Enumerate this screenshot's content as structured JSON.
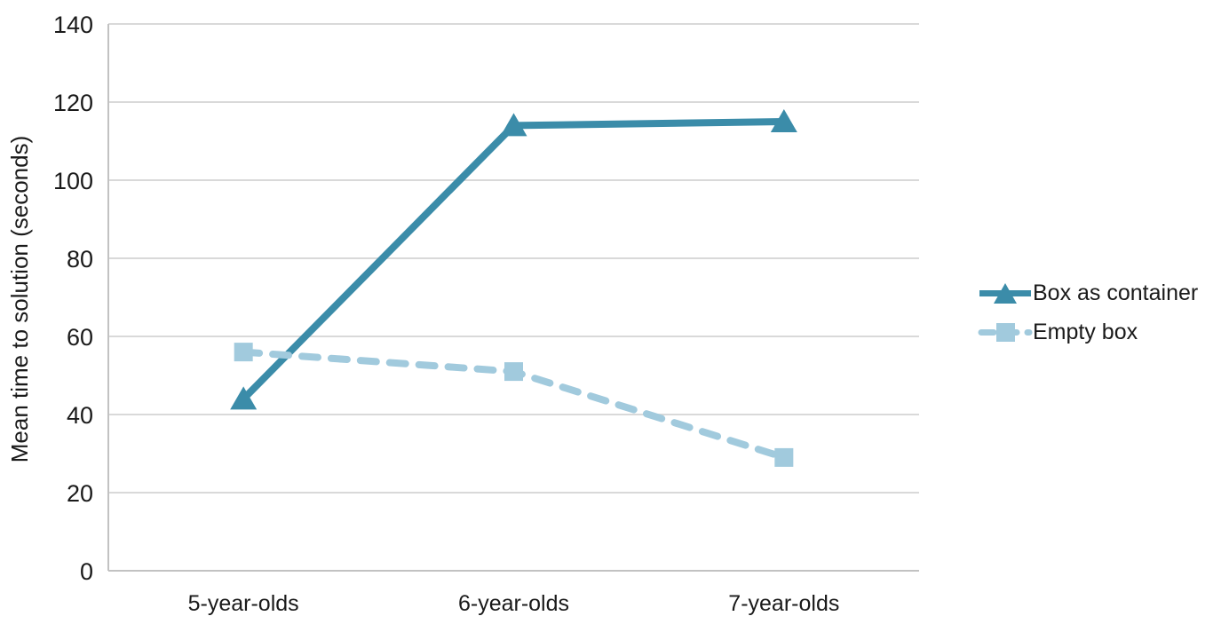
{
  "chart_data": {
    "type": "line",
    "title": "",
    "categories": [
      "5-year-olds",
      "6-year-olds",
      "7-year-olds"
    ],
    "series": [
      {
        "name": "Box as container",
        "values": [
          44,
          114,
          115
        ],
        "color": "#3B8CA9",
        "marker": "triangle",
        "line_style": "solid"
      },
      {
        "name": "Empty box",
        "values": [
          56,
          51,
          29
        ],
        "color": "#A1CADD",
        "marker": "square",
        "line_style": "dashed"
      }
    ],
    "xlabel": "",
    "ylabel": "Mean time to solution (seconds)",
    "ylim": [
      0,
      140
    ],
    "yticks": [
      0,
      20,
      40,
      60,
      80,
      100,
      120,
      140
    ],
    "grid": "horizontal",
    "legend_position": "right"
  },
  "colors": {
    "background": "#FFFFFF",
    "gridline": "#D9D9D9",
    "axis": "#C2C2C2",
    "text": "#1A1A1A"
  }
}
